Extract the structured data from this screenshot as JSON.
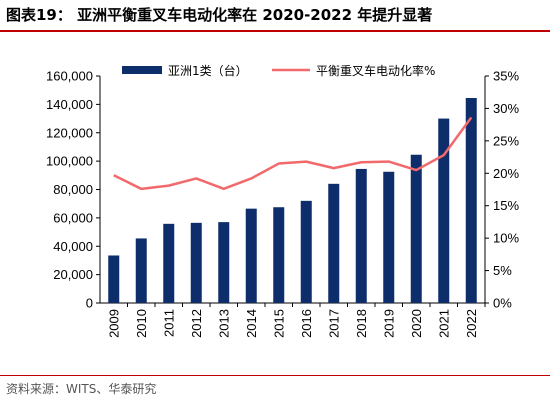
{
  "header": {
    "title": "图表19：   亚洲平衡重叉车电动化率在 2020-2022 年提升显著"
  },
  "footer": {
    "source": "资料来源：WITS、华泰研究"
  },
  "colors": {
    "bar": "#0d2e6b",
    "line": "#f2696b",
    "title_rule": "#c00000"
  },
  "chart_data": {
    "type": "bar",
    "categories": [
      "2009",
      "2010",
      "2011",
      "2012",
      "2013",
      "2014",
      "2015",
      "2016",
      "2017",
      "2018",
      "2019",
      "2020",
      "2021",
      "2022"
    ],
    "series": [
      {
        "name": "亚洲1类（台）",
        "type": "bar",
        "axis": "left",
        "values": [
          33500,
          45500,
          55800,
          56500,
          57000,
          66500,
          67500,
          72000,
          84000,
          94500,
          92500,
          104500,
          130000,
          144500
        ]
      },
      {
        "name": "平衡重叉车电动化率%",
        "type": "line",
        "axis": "right",
        "values": [
          19.7,
          17.6,
          18.1,
          19.2,
          17.6,
          19.2,
          21.5,
          21.8,
          20.8,
          21.7,
          21.8,
          20.5,
          22.8,
          28.6
        ]
      }
    ],
    "y_left": {
      "min": 0,
      "max": 160000,
      "ticks": [
        "0",
        "20,000",
        "40,000",
        "60,000",
        "80,000",
        "100,000",
        "120,000",
        "140,000",
        "160,000"
      ]
    },
    "y_right": {
      "min": 0,
      "max": 35,
      "ticks": [
        "0%",
        "5%",
        "10%",
        "15%",
        "20%",
        "25%",
        "30%",
        "35%"
      ]
    },
    "legend_position": "top-center",
    "grid": false
  }
}
